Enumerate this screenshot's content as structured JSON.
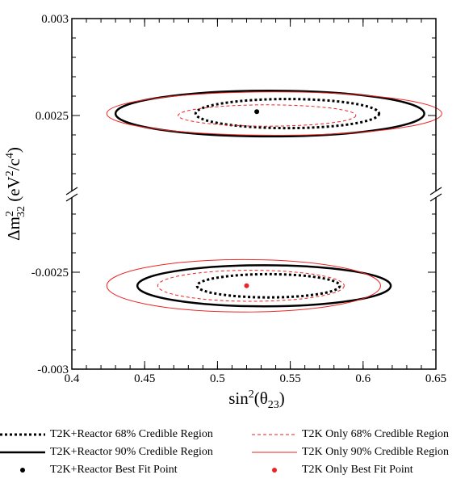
{
  "chart_data": {
    "type": "contour",
    "xlabel_base": "sin",
    "xlabel_sup": "2",
    "xlabel_arg": "(θ",
    "xlabel_sub": "23",
    "xlabel_close": ")",
    "ylabel_delta": "Δm",
    "ylabel_sup": "2",
    "ylabel_sub": "32",
    "ylabel_unit_open": " (eV",
    "ylabel_unit_sup1": "2",
    "ylabel_unit_mid": "/c",
    "ylabel_unit_sup2": "4",
    "ylabel_unit_close": ")",
    "xlim": [
      0.4,
      0.65
    ],
    "x_ticks": [
      "0.4",
      "0.45",
      "0.5",
      "0.55",
      "0.6",
      "0.65"
    ],
    "y_tick_labels": [
      "0.003",
      "0.0025",
      "-0.0025",
      "-0.003"
    ],
    "y_upper_range": [
      0.0021,
      0.003
    ],
    "y_lower_range": [
      -0.003,
      -0.0021
    ],
    "axis_break": true,
    "grid": false,
    "legend_position": "bottom",
    "series": [
      {
        "name": "T2K+Reactor 68% Credible Region",
        "color": "#000000",
        "style": "dotted",
        "upper": {
          "cx": 0.548,
          "cy": 0.00251,
          "rx": 0.063,
          "ry": 7.5e-05
        },
        "lower": {
          "cx": 0.535,
          "cy": -0.00257,
          "rx": 0.049,
          "ry": 6e-05
        }
      },
      {
        "name": "T2K+Reactor 90% Credible Region",
        "color": "#000000",
        "style": "solid-thick",
        "upper": {
          "cx": 0.536,
          "cy": 0.00251,
          "rx": 0.106,
          "ry": 0.000118
        },
        "lower": {
          "cx": 0.532,
          "cy": -0.00257,
          "rx": 0.087,
          "ry": 0.000106
        }
      },
      {
        "name": "T2K+Reactor Best Fit Point",
        "color": "#000000",
        "style": "point",
        "points": [
          {
            "x": 0.527,
            "y": 0.00252
          }
        ]
      },
      {
        "name": "T2K Only 68% Credible Region",
        "color": "#ee2222",
        "style": "dashed",
        "upper": {
          "cx": 0.534,
          "cy": 0.0025,
          "rx": 0.061,
          "ry": 5.5e-05
        },
        "lower": {
          "cx": 0.523,
          "cy": -0.00257,
          "rx": 0.064,
          "ry": 8e-05
        }
      },
      {
        "name": "T2K Only 90% Credible Region",
        "color": "#ee2222",
        "style": "solid",
        "upper": {
          "cx": 0.539,
          "cy": 0.00251,
          "rx": 0.115,
          "ry": 0.000112
        },
        "lower": {
          "cx": 0.518,
          "cy": -0.00257,
          "rx": 0.094,
          "ry": 0.000135
        }
      },
      {
        "name": "T2K Only Best Fit Point",
        "color": "#ee2222",
        "style": "point",
        "points": [
          {
            "x": 0.52,
            "y": -0.00257
          }
        ]
      }
    ]
  }
}
